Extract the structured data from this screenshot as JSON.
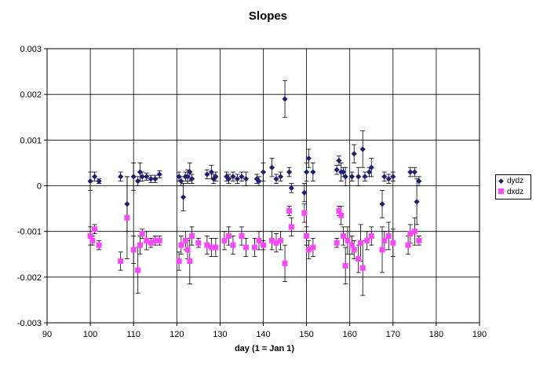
{
  "chart_data": {
    "type": "scatter",
    "title": "Slopes",
    "xlabel": "day (1 = Jan 1)",
    "ylabel": "",
    "xlim": [
      90,
      190
    ],
    "ylim": [
      -0.003,
      0.003
    ],
    "x_ticks": [
      "90",
      "100",
      "110",
      "120",
      "130",
      "140",
      "150",
      "160",
      "170",
      "180",
      "190"
    ],
    "y_ticks": [
      "0.003",
      "0.002",
      "0.001",
      "0",
      "-0.001",
      "-0.002",
      "-0.003"
    ],
    "grid": true,
    "legend_position": "right",
    "series": [
      {
        "name": "dydz",
        "color": "#1b1f7a",
        "marker": "diamond",
        "points": [
          [
            100,
            0.0001,
            0.0002
          ],
          [
            101,
            0.0002,
            0.0001
          ],
          [
            102,
            0.0001,
            5e-05
          ],
          [
            107,
            0.0002,
            0.0001
          ],
          [
            108.5,
            -0.0004,
            0.0006
          ],
          [
            110,
            0.0002,
            0.0003
          ],
          [
            111,
            0.0001,
            0.0001
          ],
          [
            111.5,
            0.0003,
            0.0002
          ],
          [
            112,
            0.0002,
            0.0001
          ],
          [
            113,
            0.0002,
            8e-05
          ],
          [
            114,
            0.00015,
            8e-05
          ],
          [
            115,
            0.00015,
            8e-05
          ],
          [
            116,
            0.00025,
            8e-05
          ],
          [
            120.5,
            0.0002,
            0.0001
          ],
          [
            121,
            0.0001,
            0.0001
          ],
          [
            121.5,
            -0.00025,
            0.0003
          ],
          [
            122,
            0.0002,
            0.0001
          ],
          [
            122.5,
            0.0002,
            0.00015
          ],
          [
            123,
            0.0003,
            0.0002
          ],
          [
            123.5,
            0.00015,
            0.0001
          ],
          [
            127,
            0.00025,
            0.0001
          ],
          [
            128,
            0.0003,
            0.00015
          ],
          [
            128.5,
            0.00015,
            0.0001
          ],
          [
            129,
            0.0002,
            0.0001
          ],
          [
            131.5,
            0.0002,
            0.0001
          ],
          [
            132,
            0.00015,
            0.0001
          ],
          [
            133,
            0.0002,
            0.0001
          ],
          [
            134,
            0.00015,
            0.0001
          ],
          [
            135,
            0.0002,
            0.0001
          ],
          [
            136,
            0.00015,
            0.00015
          ],
          [
            138.5,
            0.00015,
            0.0001
          ],
          [
            139,
            0.0001,
            0.0001
          ],
          [
            140,
            0.0003,
            0.0002
          ],
          [
            142,
            0.0004,
            0.0002
          ],
          [
            143,
            0.00015,
            0.0001
          ],
          [
            144,
            0.0002,
            0.0001
          ],
          [
            145,
            0.0019,
            0.0004
          ],
          [
            146,
            0.0003,
            0.0001
          ],
          [
            146.5,
            -5e-05,
            0.0001
          ],
          [
            149.5,
            -0.00015,
            0.0002
          ],
          [
            150,
            0.0003,
            0.0002
          ],
          [
            150.5,
            0.0006,
            0.0002
          ],
          [
            151.5,
            0.0003,
            0.0002
          ],
          [
            157,
            0.00035,
            0.0001
          ],
          [
            157.5,
            0.00055,
            0.0001
          ],
          [
            158,
            0.0003,
            0.0002
          ],
          [
            158.5,
            0.0003,
            0.0001
          ],
          [
            159,
            0.0002,
            0.0002
          ],
          [
            160.5,
            0.0002,
            0.0001
          ],
          [
            161,
            0.0007,
            0.0002
          ],
          [
            162,
            0.0002,
            0.0002
          ],
          [
            163,
            0.0008,
            0.0004
          ],
          [
            163.5,
            0.0002,
            0.0001
          ],
          [
            164.5,
            0.0003,
            0.0001
          ],
          [
            165,
            0.0004,
            0.0002
          ],
          [
            167.5,
            -0.0004,
            0.0003
          ],
          [
            168,
            0.0002,
            0.0001
          ],
          [
            169,
            0.00015,
            0.0001
          ],
          [
            170,
            0.0002,
            0.0001
          ],
          [
            174,
            0.0003,
            0.0001
          ],
          [
            175,
            0.0003,
            0.0001
          ],
          [
            175.5,
            -0.00035,
            0.0005
          ],
          [
            176,
            0.0001,
            0.0001
          ]
        ]
      },
      {
        "name": "dxdz",
        "color": "#ff44ff",
        "marker": "square",
        "points": [
          [
            100,
            -0.0011,
            0.0002
          ],
          [
            100.5,
            -0.0012,
            0.0001
          ],
          [
            101,
            -0.00095,
            0.0001
          ],
          [
            102,
            -0.0013,
            0.0001
          ],
          [
            107,
            -0.00165,
            0.0002
          ],
          [
            108.5,
            -0.0007,
            0.0009
          ],
          [
            110,
            -0.0014,
            0.0003
          ],
          [
            111,
            -0.00185,
            0.0005
          ],
          [
            111.5,
            -0.0013,
            0.0002
          ],
          [
            112,
            -0.00105,
            0.0001
          ],
          [
            113,
            -0.0012,
            0.0002
          ],
          [
            114,
            -0.00125,
            0.0001
          ],
          [
            115,
            -0.0012,
            0.0001
          ],
          [
            116,
            -0.0012,
            0.0001
          ],
          [
            120.5,
            -0.00165,
            0.0002
          ],
          [
            121,
            -0.0013,
            0.0002
          ],
          [
            122,
            -0.0012,
            0.0002
          ],
          [
            122.5,
            -0.0014,
            0.0002
          ],
          [
            123,
            -0.00165,
            0.0005
          ],
          [
            123.5,
            -0.0011,
            0.0002
          ],
          [
            125,
            -0.00125,
            0.0001
          ],
          [
            127,
            -0.0013,
            0.0002
          ],
          [
            128,
            -0.00135,
            0.0002
          ],
          [
            129,
            -0.00135,
            0.0002
          ],
          [
            131,
            -0.0012,
            0.0002
          ],
          [
            132,
            -0.0011,
            0.0002
          ],
          [
            133,
            -0.0013,
            0.0002
          ],
          [
            135,
            -0.0011,
            0.0002
          ],
          [
            136,
            -0.00135,
            0.0002
          ],
          [
            138,
            -0.00135,
            0.0002
          ],
          [
            139,
            -0.0012,
            0.0002
          ],
          [
            140,
            -0.0013,
            0.0001
          ],
          [
            142,
            -0.0012,
            0.0002
          ],
          [
            143,
            -0.00125,
            0.0002
          ],
          [
            144,
            -0.0012,
            0.0002
          ],
          [
            145,
            -0.0017,
            0.0004
          ],
          [
            146,
            -0.00055,
            0.0001
          ],
          [
            146.5,
            -0.0009,
            0.0002
          ],
          [
            149.5,
            -0.0006,
            0.0002
          ],
          [
            150,
            -0.0011,
            0.0002
          ],
          [
            150.5,
            -0.0014,
            0.0002
          ],
          [
            151.5,
            -0.00135,
            0.0002
          ],
          [
            157,
            -0.00125,
            0.0001
          ],
          [
            157.5,
            -0.00055,
            0.0001
          ],
          [
            158,
            -0.00065,
            0.0002
          ],
          [
            158.5,
            -0.0011,
            0.0002
          ],
          [
            159,
            -0.00175,
            0.0004
          ],
          [
            159.5,
            -0.0012,
            0.0003
          ],
          [
            160.5,
            -0.0013,
            0.0002
          ],
          [
            161,
            -0.0014,
            0.0002
          ],
          [
            162,
            -0.0016,
            0.0003
          ],
          [
            162.5,
            -0.00125,
            0.0004
          ],
          [
            163,
            -0.0018,
            0.0006
          ],
          [
            164,
            -0.0012,
            0.0002
          ],
          [
            165,
            -0.0011,
            0.0002
          ],
          [
            167.5,
            -0.0014,
            0.0005
          ],
          [
            168,
            -0.0012,
            0.0002
          ],
          [
            169,
            -0.0011,
            0.0003
          ],
          [
            170,
            -0.00125,
            0.0003
          ],
          [
            173.5,
            -0.0013,
            0.0002
          ],
          [
            174,
            -0.00105,
            0.0002
          ],
          [
            175,
            -0.001,
            0.0003
          ],
          [
            176,
            -0.0012,
            0.0001
          ]
        ]
      }
    ]
  }
}
